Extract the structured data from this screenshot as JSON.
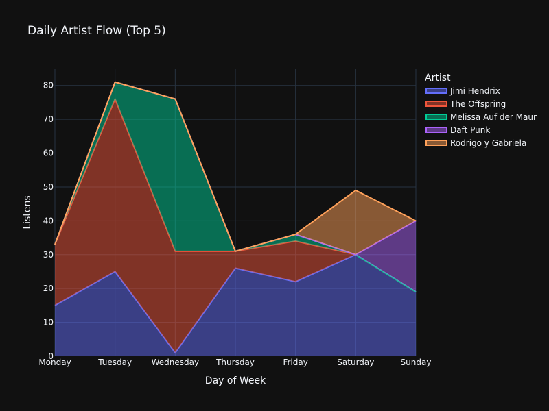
{
  "chart_data": {
    "type": "area",
    "title": "Daily Artist Flow (Top 5)",
    "xlabel": "Day of Week",
    "ylabel": "Listens",
    "categories": [
      "Monday",
      "Tuesday",
      "Wednesday",
      "Thursday",
      "Friday",
      "Saturday",
      "Sunday"
    ],
    "ylim": [
      0,
      85
    ],
    "yticks": [
      0,
      10,
      20,
      30,
      40,
      50,
      60,
      70,
      80
    ],
    "stacked": true,
    "grid": true,
    "legend_title": "Artist",
    "legend_position": "top-right",
    "series": [
      {
        "name": "Jimi Hendrix",
        "values": [
          15,
          25,
          1,
          26,
          22,
          30,
          19
        ],
        "color": "#636efa"
      },
      {
        "name": "The Offspring",
        "values": [
          18,
          51,
          30,
          5,
          12,
          0,
          0
        ],
        "color": "#ef553b"
      },
      {
        "name": "Melissa Auf der Maur",
        "values": [
          0,
          5,
          45,
          0,
          2,
          0,
          0
        ],
        "color": "#00cc96"
      },
      {
        "name": "Daft Punk",
        "values": [
          0,
          0,
          0,
          0,
          0,
          0,
          21
        ],
        "color": "#ab63fa"
      },
      {
        "name": "Rodrigo y Gabriela",
        "values": [
          0,
          0,
          0,
          0,
          0,
          19,
          0
        ],
        "color": "#ffa15a"
      }
    ]
  }
}
